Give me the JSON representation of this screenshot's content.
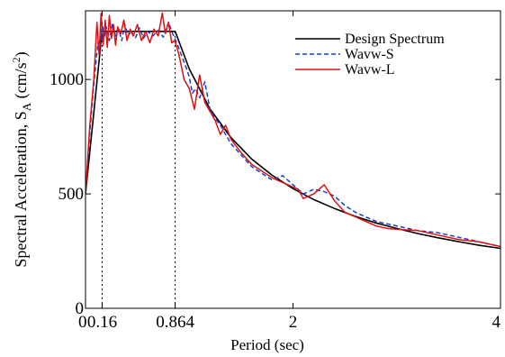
{
  "chart_data": {
    "type": "line",
    "title": "",
    "xlabel": "Period (sec)",
    "ylabel_main": "Spectral Acceleration, S",
    "ylabel_sub": "A",
    "ylabel_unit_open": " (cm/s",
    "ylabel_unit_sup": "2",
    "ylabel_unit_close": ")",
    "xlim": [
      0,
      4
    ],
    "ylim": [
      0,
      1300
    ],
    "xticks": [
      {
        "value": 0,
        "label": "0"
      },
      {
        "value": 0.16,
        "label": "0.16"
      },
      {
        "value": 0.864,
        "label": "0.864"
      },
      {
        "value": 2,
        "label": "2"
      },
      {
        "value": 4,
        "label": "4"
      }
    ],
    "yticks": [
      {
        "value": 0,
        "label": "0"
      },
      {
        "value": 500,
        "label": "500"
      },
      {
        "value": 1000,
        "label": "1000"
      }
    ],
    "reference_lines_x": [
      0.16,
      0.864
    ],
    "legend_position": "top-right",
    "series": [
      {
        "name": "Design Spectrum",
        "color": "#000000",
        "dash": "solid",
        "x": [
          0,
          0.16,
          0.864,
          1.0,
          1.2,
          1.4,
          1.6,
          1.8,
          2.0,
          2.2,
          2.4,
          2.6,
          2.8,
          3.0,
          3.2,
          3.4,
          3.6,
          3.8,
          4.0
        ],
        "y": [
          500,
          1210,
          1210,
          1046,
          871,
          747,
          653,
          581,
          523,
          475,
          436,
          402,
          373,
          349,
          327,
          308,
          291,
          275,
          262
        ]
      },
      {
        "name": "Wavw-S",
        "color": "#1a3ccc",
        "dash": "dashed",
        "x": [
          0,
          0.04,
          0.08,
          0.12,
          0.14,
          0.16,
          0.18,
          0.2,
          0.23,
          0.26,
          0.29,
          0.32,
          0.35,
          0.38,
          0.41,
          0.44,
          0.48,
          0.52,
          0.56,
          0.6,
          0.65,
          0.7,
          0.75,
          0.8,
          0.84,
          0.88,
          0.93,
          0.98,
          1.0,
          1.03,
          1.06,
          1.1,
          1.15,
          1.2,
          1.25,
          1.3,
          1.35,
          1.4,
          1.5,
          1.6,
          1.7,
          1.8,
          1.9,
          2.0,
          2.1,
          2.2,
          2.3,
          2.4,
          2.5,
          2.6,
          2.7,
          2.8,
          2.9,
          3.0,
          3.2,
          3.4,
          3.6,
          3.8,
          4.0
        ],
        "y": [
          500,
          760,
          980,
          1160,
          1120,
          1250,
          1180,
          1230,
          1170,
          1245,
          1190,
          1220,
          1170,
          1240,
          1190,
          1210,
          1180,
          1225,
          1180,
          1210,
          1190,
          1215,
          1185,
          1250,
          1200,
          1160,
          1100,
          1040,
          1010,
          940,
          960,
          920,
          990,
          870,
          830,
          800,
          760,
          720,
          670,
          620,
          590,
          560,
          580,
          540,
          500,
          520,
          510,
          490,
          450,
          420,
          400,
          380,
          370,
          360,
          340,
          330,
          310,
          290,
          270
        ]
      },
      {
        "name": "Wavw-L",
        "color": "#e01010",
        "dash": "solid",
        "x": [
          0,
          0.04,
          0.08,
          0.11,
          0.13,
          0.15,
          0.17,
          0.19,
          0.21,
          0.23,
          0.25,
          0.27,
          0.29,
          0.31,
          0.34,
          0.37,
          0.4,
          0.43,
          0.46,
          0.5,
          0.54,
          0.58,
          0.62,
          0.66,
          0.7,
          0.74,
          0.77,
          0.8,
          0.83,
          0.86,
          0.9,
          0.95,
          1.0,
          1.05,
          1.1,
          1.15,
          1.2,
          1.25,
          1.3,
          1.35,
          1.4,
          1.5,
          1.6,
          1.7,
          1.8,
          1.9,
          2.0,
          2.05,
          2.1,
          2.2,
          2.3,
          2.4,
          2.5,
          2.6,
          2.7,
          2.8,
          2.9,
          3.0,
          3.2,
          3.4,
          3.6,
          3.8,
          4.0
        ],
        "y": [
          500,
          790,
          1000,
          1250,
          1110,
          1290,
          1150,
          1260,
          1140,
          1280,
          1180,
          1240,
          1150,
          1230,
          1200,
          1260,
          1170,
          1220,
          1190,
          1240,
          1170,
          1210,
          1160,
          1220,
          1190,
          1290,
          1200,
          1250,
          1160,
          1170,
          1110,
          1000,
          960,
          870,
          1020,
          900,
          860,
          820,
          760,
          800,
          740,
          680,
          630,
          600,
          570,
          550,
          530,
          520,
          480,
          500,
          540,
          470,
          420,
          400,
          380,
          360,
          350,
          345,
          340,
          320,
          300,
          290,
          270
        ]
      }
    ]
  }
}
